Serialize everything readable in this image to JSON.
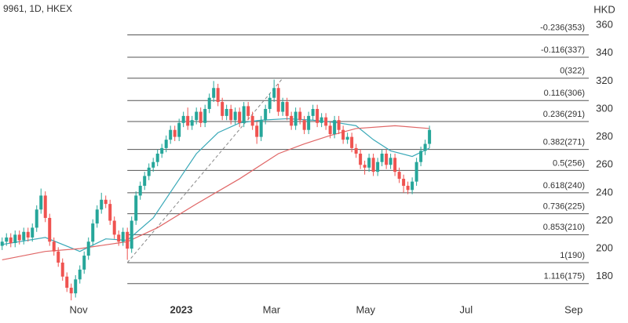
{
  "chart_data": {
    "type": "candlestick",
    "title": "9961, 1D, HKEX",
    "y_axis_label": "HKD",
    "xlim": [
      -0.5,
      135.9
    ],
    "xticks": [
      {
        "value": 17.7,
        "label": "Nov"
      },
      {
        "value": 41.5,
        "label": "2023"
      },
      {
        "value": 62.4,
        "label": "Mar"
      },
      {
        "value": 84.2,
        "label": "May"
      },
      {
        "value": 107.5,
        "label": "Jul"
      },
      {
        "value": 132.4,
        "label": "Sep"
      }
    ],
    "ylim": [
      153.5,
      378
    ],
    "yticks": [
      180,
      200,
      220,
      240,
      260,
      280,
      300,
      320,
      340,
      360
    ],
    "grid": false,
    "up_color": "#26a69a",
    "down_color": "#ef5350",
    "open": [
      202,
      205,
      208,
      204,
      210,
      206,
      212,
      208,
      215,
      228,
      238,
      222,
      205,
      198,
      190,
      180,
      172,
      168,
      178,
      185,
      195,
      205,
      218,
      228,
      235,
      232,
      220,
      210,
      205,
      212,
      200,
      220,
      238,
      245,
      252,
      258,
      262,
      268,
      272,
      278,
      285,
      280,
      290,
      295,
      288,
      292,
      298,
      290,
      300,
      308,
      315,
      305,
      295,
      300,
      292,
      298,
      290,
      302,
      295,
      288,
      280,
      292,
      300,
      308,
      315,
      298,
      305,
      295,
      288,
      298,
      292,
      285,
      295,
      300,
      290,
      294,
      288,
      282,
      292,
      285,
      278,
      280,
      272,
      268,
      260,
      258,
      265,
      255,
      262,
      268,
      260,
      265,
      255,
      250,
      245,
      242,
      248,
      262,
      270,
      275
    ],
    "high": [
      208,
      211,
      211,
      213,
      213,
      215,
      215,
      218,
      231,
      243,
      241,
      225,
      208,
      201,
      193,
      183,
      175,
      181,
      188,
      198,
      208,
      221,
      231,
      240,
      238,
      235,
      223,
      213,
      215,
      215,
      223,
      241,
      248,
      255,
      261,
      265,
      271,
      275,
      281,
      288,
      288,
      293,
      298,
      301,
      295,
      301,
      301,
      303,
      311,
      320,
      318,
      308,
      303,
      303,
      301,
      301,
      305,
      305,
      298,
      291,
      295,
      303,
      311,
      321,
      318,
      308,
      308,
      298,
      301,
      301,
      295,
      298,
      303,
      303,
      297,
      297,
      291,
      295,
      295,
      288,
      283,
      283,
      275,
      271,
      263,
      268,
      268,
      265,
      271,
      271,
      268,
      268,
      258,
      253,
      248,
      251,
      265,
      273,
      278,
      288
    ],
    "low": [
      199,
      202,
      201,
      201,
      203,
      203,
      205,
      205,
      212,
      225,
      219,
      202,
      195,
      187,
      177,
      169,
      163,
      165,
      175,
      182,
      192,
      202,
      215,
      225,
      229,
      217,
      207,
      202,
      202,
      192,
      197,
      217,
      235,
      242,
      249,
      255,
      259,
      265,
      269,
      275,
      277,
      277,
      287,
      285,
      285,
      289,
      287,
      287,
      297,
      305,
      302,
      292,
      292,
      289,
      289,
      287,
      287,
      292,
      285,
      275,
      277,
      289,
      297,
      305,
      295,
      295,
      292,
      285,
      285,
      289,
      282,
      282,
      292,
      287,
      287,
      285,
      279,
      279,
      282,
      275,
      275,
      269,
      265,
      257,
      253,
      255,
      252,
      252,
      259,
      257,
      257,
      252,
      247,
      240,
      239,
      239,
      245,
      259,
      267,
      272
    ],
    "close": [
      205,
      208,
      204,
      210,
      206,
      212,
      208,
      215,
      228,
      238,
      222,
      205,
      198,
      190,
      180,
      172,
      168,
      178,
      185,
      195,
      205,
      218,
      228,
      235,
      232,
      220,
      210,
      205,
      212,
      200,
      220,
      238,
      245,
      252,
      258,
      262,
      268,
      272,
      278,
      285,
      280,
      290,
      295,
      288,
      292,
      298,
      290,
      300,
      308,
      315,
      305,
      295,
      300,
      292,
      298,
      290,
      302,
      295,
      288,
      280,
      292,
      300,
      308,
      315,
      298,
      305,
      295,
      288,
      298,
      292,
      285,
      295,
      300,
      290,
      294,
      288,
      282,
      292,
      285,
      278,
      280,
      272,
      268,
      260,
      258,
      265,
      255,
      262,
      268,
      260,
      265,
      255,
      250,
      245,
      242,
      248,
      262,
      270,
      275,
      285
    ],
    "series": [
      {
        "color": "#3aa9b8",
        "x": [
          0,
          10,
          18,
          24,
          29,
          35,
          40,
          45,
          50,
          55,
          60,
          66,
          72,
          78,
          82,
          86,
          90,
          95,
          99
        ],
        "values": [
          203,
          208,
          198,
          207,
          206,
          222,
          245,
          268,
          283,
          290,
          292,
          293,
          292,
          290,
          288,
          278,
          270,
          266,
          272
        ]
      },
      {
        "color": "#e06666",
        "x": [
          0,
          10,
          18,
          29,
          36,
          45,
          55,
          64,
          70,
          76,
          82,
          91,
          99
        ],
        "values": [
          192,
          198,
          200,
          205,
          215,
          232,
          250,
          268,
          275,
          281,
          286,
          288,
          286
        ]
      }
    ],
    "fib": {
      "x_start": 29,
      "x_end": 65,
      "levels": [
        {
          "value": 353,
          "label": "-0.236(353)"
        },
        {
          "value": 337,
          "label": "-0.116(337)"
        },
        {
          "value": 322,
          "label": "0(322)"
        },
        {
          "value": 306,
          "label": "0.116(306)"
        },
        {
          "value": 291,
          "label": "0.236(291)"
        },
        {
          "value": 271,
          "label": "0.382(271)"
        },
        {
          "value": 256,
          "label": "0.5(256)"
        },
        {
          "value": 240,
          "label": "0.618(240)"
        },
        {
          "value": 225,
          "label": "0.736(225)"
        },
        {
          "value": 210,
          "label": "0.853(210)"
        },
        {
          "value": 190,
          "label": "1(190)"
        },
        {
          "value": 175,
          "label": "1.116(175)"
        }
      ]
    }
  }
}
